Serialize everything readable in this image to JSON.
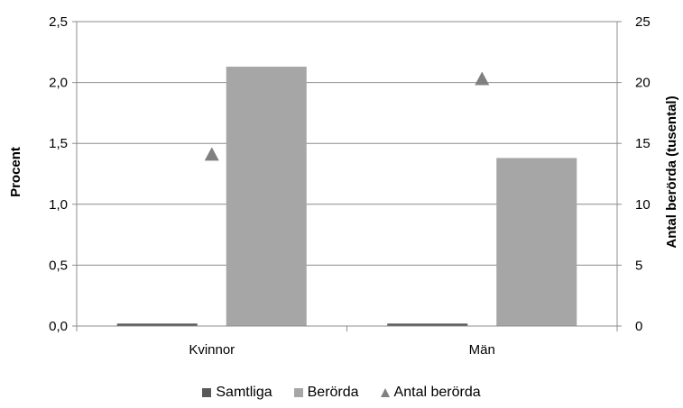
{
  "chart_data": {
    "type": "bar",
    "categories": [
      "Kvinnor",
      "Män"
    ],
    "series": [
      {
        "name": "Samtliga",
        "axis": "left",
        "kind": "bar",
        "color": "#595959",
        "values": [
          0.02,
          0.02
        ]
      },
      {
        "name": "Berörda",
        "axis": "left",
        "kind": "bar",
        "color": "#a6a6a6",
        "values": [
          2.13,
          1.38
        ]
      },
      {
        "name": "Antal berörda",
        "axis": "right",
        "kind": "marker",
        "marker": "triangle",
        "color": "#808080",
        "values": [
          14.1,
          20.3
        ]
      }
    ],
    "ylabel": "Procent",
    "y2label": "Antal berörda (tusental)",
    "ylim": [
      0,
      2.5
    ],
    "y2lim": [
      0,
      25
    ],
    "yticks": [
      "0,0",
      "0,5",
      "1,0",
      "1,5",
      "2,0",
      "2,5"
    ],
    "y2ticks": [
      "0",
      "5",
      "10",
      "15",
      "20",
      "25"
    ],
    "grid": "horizontal",
    "legend_position": "bottom"
  }
}
